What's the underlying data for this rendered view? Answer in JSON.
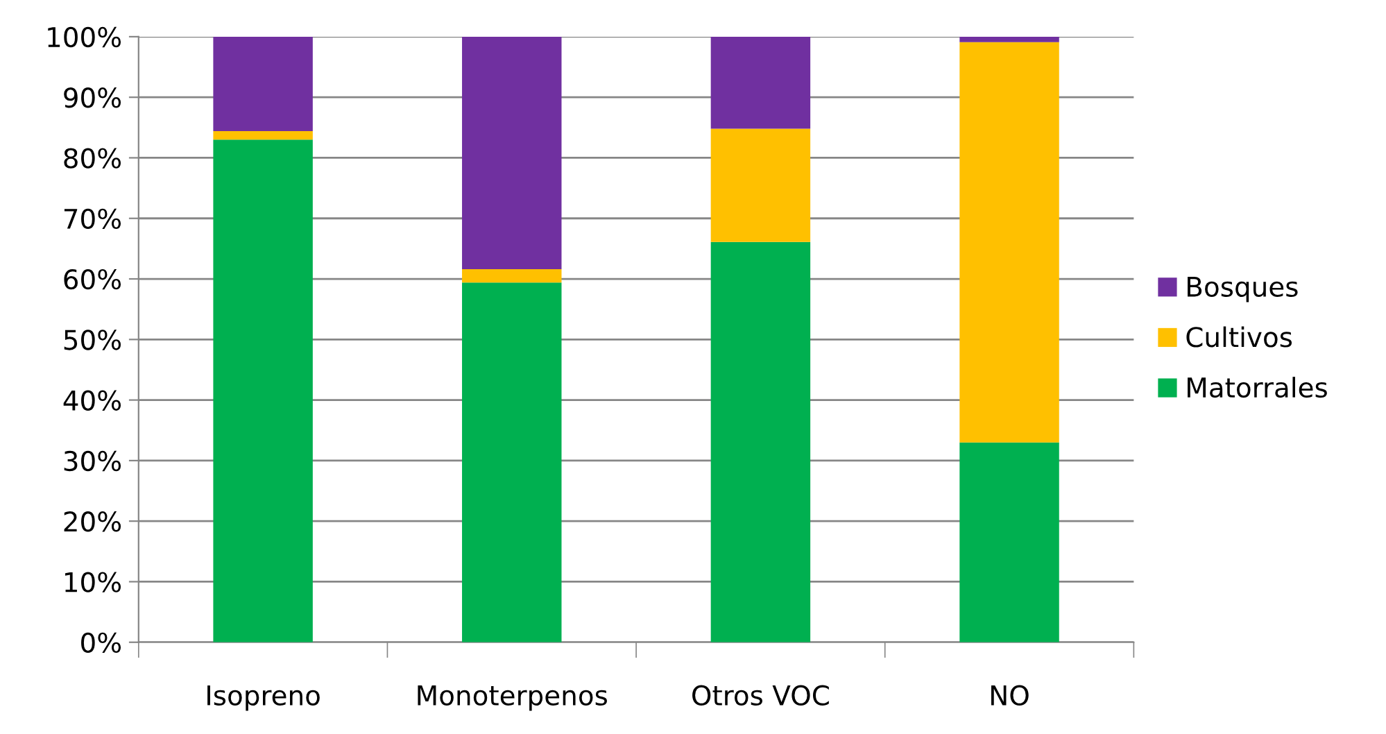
{
  "chart_data": {
    "type": "bar",
    "stacked": true,
    "categories": [
      "Isopreno",
      "Monoterpenos",
      "Otros VOC",
      "NO"
    ],
    "series": [
      {
        "name": "Matorrales",
        "color": "#00b050",
        "values": [
          83.0,
          59.4,
          66.1,
          33.0
        ]
      },
      {
        "name": "Cultivos",
        "color": "#ffc000",
        "values": [
          1.4,
          2.2,
          18.7,
          66.1
        ]
      },
      {
        "name": "Bosques",
        "color": "#7030a0",
        "values": [
          15.6,
          38.4,
          15.2,
          0.9
        ]
      }
    ],
    "ylim": [
      0,
      100
    ],
    "yticks": [
      {
        "value": 0,
        "label": "0%"
      },
      {
        "value": 10,
        "label": "10%"
      },
      {
        "value": 20,
        "label": "20%"
      },
      {
        "value": 30,
        "label": "30%"
      },
      {
        "value": 40,
        "label": "40%"
      },
      {
        "value": 50,
        "label": "50%"
      },
      {
        "value": 60,
        "label": "60%"
      },
      {
        "value": 70,
        "label": "70%"
      },
      {
        "value": 80,
        "label": "80%"
      },
      {
        "value": 90,
        "label": "90%"
      },
      {
        "value": 100,
        "label": "100%"
      }
    ],
    "grid": "y",
    "legend": "right"
  }
}
